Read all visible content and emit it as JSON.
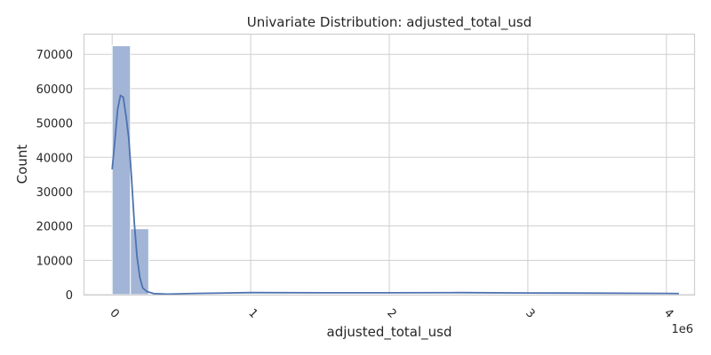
{
  "chart_data": {
    "type": "bar",
    "title": "Univariate Distribution: adjusted_total_usd",
    "xlabel": "adjusted_total_usd",
    "ylabel": "Count",
    "x_offset_label": "1e6",
    "xlim": [
      -0.2,
      4.2
    ],
    "ylim": [
      0,
      76000
    ],
    "x_ticks": [
      {
        "value": 0,
        "label": "0"
      },
      {
        "value": 1,
        "label": "1"
      },
      {
        "value": 2,
        "label": "2"
      },
      {
        "value": 3,
        "label": "3"
      },
      {
        "value": 4,
        "label": "4"
      }
    ],
    "y_ticks": [
      {
        "value": 0,
        "label": "0"
      },
      {
        "value": 10000,
        "label": "10000"
      },
      {
        "value": 20000,
        "label": "20000"
      },
      {
        "value": 30000,
        "label": "30000"
      },
      {
        "value": 40000,
        "label": "40000"
      },
      {
        "value": 50000,
        "label": "50000"
      },
      {
        "value": 60000,
        "label": "60000"
      },
      {
        "value": 70000,
        "label": "70000"
      }
    ],
    "bins": [
      {
        "x0": 0.0,
        "x1": 0.132,
        "count": 72500
      },
      {
        "x0": 0.132,
        "x1": 0.264,
        "count": 19200
      },
      {
        "x0": 0.264,
        "x1": 0.396,
        "count": 200
      },
      {
        "x0": 0.396,
        "x1": 0.528,
        "count": 80
      },
      {
        "x0": 0.528,
        "x1": 0.66,
        "count": 60
      },
      {
        "x0": 0.66,
        "x1": 0.792,
        "count": 60
      },
      {
        "x0": 0.792,
        "x1": 0.924,
        "count": 60
      },
      {
        "x0": 0.924,
        "x1": 1.056,
        "count": 60
      },
      {
        "x0": 1.056,
        "x1": 1.188,
        "count": 60
      },
      {
        "x0": 1.188,
        "x1": 1.32,
        "count": 60
      },
      {
        "x0": 1.32,
        "x1": 1.452,
        "count": 60
      },
      {
        "x0": 1.452,
        "x1": 1.584,
        "count": 60
      },
      {
        "x0": 1.584,
        "x1": 1.716,
        "count": 60
      },
      {
        "x0": 1.716,
        "x1": 1.848,
        "count": 60
      },
      {
        "x0": 1.848,
        "x1": 1.98,
        "count": 60
      },
      {
        "x0": 1.98,
        "x1": 2.112,
        "count": 60
      },
      {
        "x0": 2.112,
        "x1": 2.244,
        "count": 60
      },
      {
        "x0": 2.244,
        "x1": 2.376,
        "count": 60
      },
      {
        "x0": 2.376,
        "x1": 2.508,
        "count": 60
      },
      {
        "x0": 2.508,
        "x1": 2.64,
        "count": 60
      },
      {
        "x0": 2.64,
        "x1": 2.772,
        "count": 60
      },
      {
        "x0": 2.772,
        "x1": 2.904,
        "count": 60
      },
      {
        "x0": 2.904,
        "x1": 3.036,
        "count": 60
      },
      {
        "x0": 3.036,
        "x1": 3.168,
        "count": 60
      },
      {
        "x0": 3.168,
        "x1": 3.3,
        "count": 60
      },
      {
        "x0": 3.3,
        "x1": 3.432,
        "count": 60
      },
      {
        "x0": 3.432,
        "x1": 3.564,
        "count": 60
      },
      {
        "x0": 3.564,
        "x1": 3.696,
        "count": 60
      },
      {
        "x0": 3.696,
        "x1": 3.828,
        "count": 60
      },
      {
        "x0": 3.828,
        "x1": 3.96,
        "count": 60
      },
      {
        "x0": 3.96,
        "x1": 4.092,
        "count": 60
      }
    ],
    "kde": {
      "x": [
        0,
        0.02,
        0.04,
        0.06,
        0.08,
        0.1,
        0.12,
        0.14,
        0.16,
        0.18,
        0.2,
        0.22,
        0.25,
        0.3,
        0.4,
        0.6,
        1.0,
        1.5,
        2.0,
        2.5,
        3.0,
        3.5,
        4.0,
        4.09
      ],
      "y": [
        36500,
        45000,
        54000,
        58000,
        57500,
        52000,
        45500,
        34000,
        21000,
        11000,
        5000,
        2000,
        900,
        300,
        150,
        350,
        600,
        550,
        550,
        600,
        500,
        450,
        350,
        300
      ]
    },
    "colors": {
      "bar": "#a3b5d6",
      "kde_line": "#4c72b0",
      "grid": "#cfcfcf"
    },
    "grid": true
  }
}
